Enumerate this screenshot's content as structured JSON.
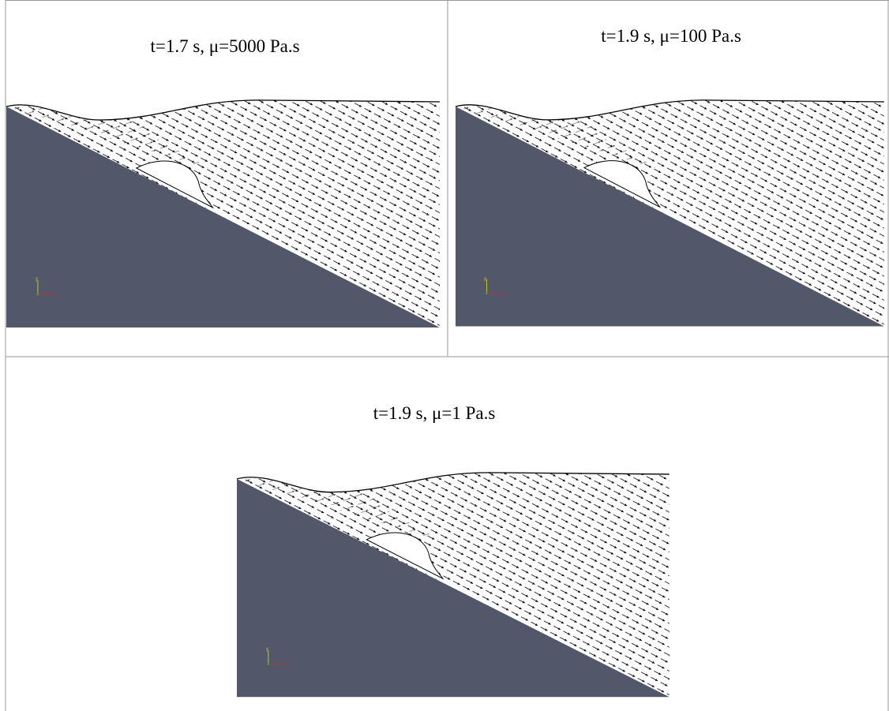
{
  "panels": [
    {
      "title": "t=1.7 s, μ=5000 Pa.s"
    },
    {
      "title": "t=1.9 s, μ=100 Pa.s"
    },
    {
      "title": "t=1.9 s, μ=1 Pa.s"
    }
  ],
  "triad": {
    "x": "x",
    "y": "y"
  }
}
